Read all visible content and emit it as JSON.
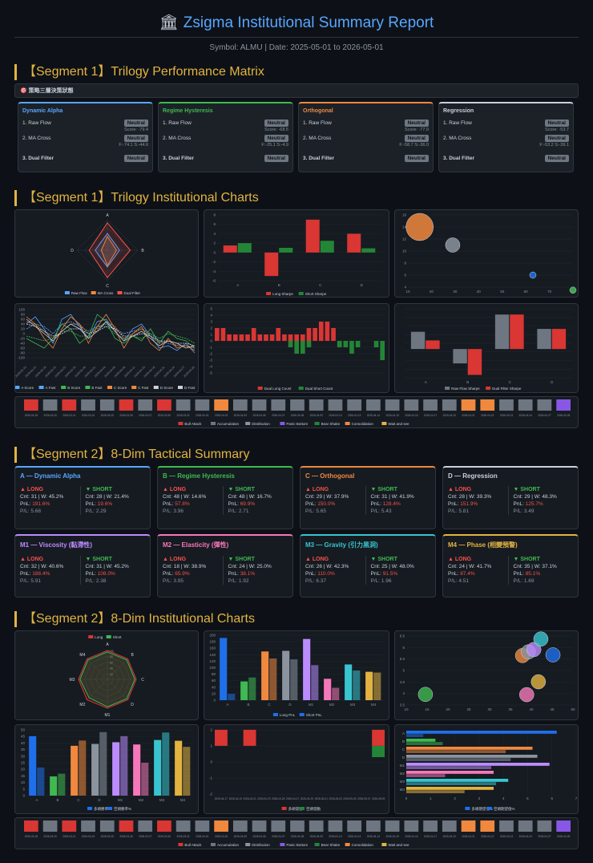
{
  "header": {
    "title": "Zsigma Institutional Summary Report",
    "subtitle": "Symbol: ALMU | Date: 2025-05-01 to 2026-05-01"
  },
  "sections": {
    "s1_matrix": "【Segment 1】Trilogy Performance Matrix",
    "s1_charts": "【Segment 1】Trilogy Institutional Charts",
    "s2_summary": "【Segment 2】8-Dim Tactical Summary",
    "s2_charts": "【Segment 2】8-Dim Institutional Charts"
  },
  "matrix_bar_label": "🎯 策略三層決策狀態",
  "matrix": [
    {
      "name": "Dynamic Alpha",
      "color": "#58a6ff",
      "r1": "1. Raw Flow",
      "b1": "Neutral",
      "s1": "Score: -79.4",
      "r2": "2. MA Cross",
      "b2": "Neutral",
      "s2": "F:-74.1 S:-44.6",
      "r3": "3. Dual Filter",
      "b3": "Neutral"
    },
    {
      "name": "Regime Hysteresis",
      "color": "#3fb950",
      "r1": "1. Raw Flow",
      "b1": "Neutral",
      "s1": "Score: -68.5",
      "r2": "2. MA Cross",
      "b2": "Neutral",
      "s2": "F:-25.1 S:-4.9",
      "r3": "3. Dual Filter",
      "b3": "Neutral"
    },
    {
      "name": "Orthogonal",
      "color": "#f0883e",
      "r1": "1. Raw Flow",
      "b1": "Neutral",
      "s1": "Score: -77.0",
      "r2": "2. MA Cross",
      "b2": "Neutral",
      "s2": "F:-58.7 S:-36.0",
      "r3": "3. Dual Filter",
      "b3": "Neutral"
    },
    {
      "name": "Regression",
      "color": "#c9d1d9",
      "r1": "1. Raw Flow",
      "b1": "Neutral",
      "s1": "Score: -53.7",
      "r2": "2. MA Cross",
      "b2": "Neutral",
      "s2": "F:-53.2 S:-39.1",
      "r3": "3. Dual Filter",
      "b3": "Neutral"
    }
  ],
  "tactical": [
    {
      "title": "A — Dynamic Alpha",
      "color": "#58a6ff",
      "long": {
        "cnt": "Cnt: 31 | W: 45.2%",
        "pnl": "191.6%",
        "pl": "P/L: 5.68"
      },
      "short": {
        "cnt": "Cnt: 28 | W: 21.4%",
        "pnl": "19.6%",
        "pl": "P/L: 2.29"
      }
    },
    {
      "title": "B — Regime Hysteresis",
      "color": "#3fb950",
      "long": {
        "cnt": "Cnt: 48 | W: 14.6%",
        "pnl": "57.8%",
        "pl": "P/L: 3.96"
      },
      "short": {
        "cnt": "Cnt: 48 | W: 16.7%",
        "pnl": "69.9%",
        "pl": "P/L: 2.71"
      }
    },
    {
      "title": "C — Orthogonal",
      "color": "#f0883e",
      "long": {
        "cnt": "Cnt: 29 | W: 37.9%",
        "pnl": "150.0%",
        "pl": "P/L: 5.65"
      },
      "short": {
        "cnt": "Cnt: 31 | W: 41.9%",
        "pnl": "128.4%",
        "pl": "P/L: 5.43"
      }
    },
    {
      "title": "D — Regression",
      "color": "#c9d1d9",
      "long": {
        "cnt": "Cnt: 28 | W: 39.3%",
        "pnl": "151.9%",
        "pl": "P/L: 5.81"
      },
      "short": {
        "cnt": "Cnt: 29 | W: 48.3%",
        "pnl": "125.7%",
        "pl": "P/L: 3.49"
      }
    },
    {
      "title": "M1 — Viscosity (黏滯性)",
      "color": "#bc8cff",
      "long": {
        "cnt": "Cnt: 32 | W: 40.6%",
        "pnl": "188.4%",
        "pl": "P/L: 5.91"
      },
      "short": {
        "cnt": "Cnt: 31 | W: 45.2%",
        "pnl": "108.0%",
        "pl": "P/L: 2.38"
      }
    },
    {
      "title": "M2 — Elasticity (彈性)",
      "color": "#f778ba",
      "long": {
        "cnt": "Cnt: 18 | W: 38.9%",
        "pnl": "65.9%",
        "pl": "P/L: 3.95"
      },
      "short": {
        "cnt": "Cnt: 24 | W: 25.0%",
        "pnl": "38.1%",
        "pl": "P/L: 1.92"
      }
    },
    {
      "title": "M3 — Gravity (引力黑洞)",
      "color": "#39c5cf",
      "long": {
        "cnt": "Cnt: 26 | W: 42.3%",
        "pnl": "110.0%",
        "pl": "P/L: 6.37"
      },
      "short": {
        "cnt": "Cnt: 25 | W: 48.0%",
        "pnl": "91.5%",
        "pl": "P/L: 1.96"
      }
    },
    {
      "title": "M4 — Phase (相變預警)",
      "color": "#e3b341",
      "long": {
        "cnt": "Cnt: 24 | W: 41.7%",
        "pnl": "87.4%",
        "pl": "P/L: 4.51"
      },
      "short": {
        "cnt": "Cnt: 35 | W: 37.1%",
        "pnl": "85.1%",
        "pl": "P/L: 1.69"
      }
    }
  ],
  "labels": {
    "long": "▲ LONG",
    "short": "▼ SHORT",
    "pnl_prefix": "PnL: "
  },
  "charts": {
    "radar1": {
      "axes": [
        "A",
        "B",
        "C",
        "D"
      ],
      "legend": [
        "Raw Flow",
        "MA Cross",
        "Dual Filter"
      ],
      "colors": [
        "#58a6ff",
        "#f0883e",
        "#f85149"
      ],
      "values": [
        [
          0.55,
          0.4,
          0.55,
          0.4
        ],
        [
          0.45,
          0.3,
          0.5,
          0.2
        ],
        [
          0.9,
          0.75,
          0.9,
          0.6
        ]
      ]
    },
    "bar1": {
      "categories": [
        "A",
        "B",
        "C",
        "D"
      ],
      "ylim": [
        -6,
        8
      ],
      "ticks": [
        "8",
        "6",
        "4",
        "2",
        "0",
        "-2",
        "-4",
        "-6"
      ],
      "legend": [
        "Long Sharpe",
        "Short Sharpe"
      ],
      "colors": [
        "#da3633",
        "#238636"
      ],
      "series": [
        [
          1.5,
          -5.0,
          7.0,
          4.0
        ],
        [
          2.0,
          1.0,
          2.5,
          0.9
        ]
      ]
    },
    "bubble1": {
      "xticks": [
        "10",
        "20",
        "30",
        "40",
        "50",
        "60",
        "70",
        "80"
      ],
      "yticks": [
        "16",
        "14",
        "12",
        "10",
        "8",
        "6",
        "4"
      ],
      "points": [
        {
          "x": 15,
          "y": 14,
          "r": 17,
          "c": "#f0883e"
        },
        {
          "x": 29,
          "y": 11,
          "r": 9,
          "c": "#8b949e"
        },
        {
          "x": 63,
          "y": 6,
          "r": 4,
          "c": "#1f6feb"
        },
        {
          "x": 80,
          "y": 3.5,
          "r": 4,
          "c": "#3fb950"
        }
      ]
    },
    "line1": {
      "legend": [
        "A Score",
        "A Fast",
        "B Score",
        "B Fast",
        "C Score",
        "C Fast",
        "D Score",
        "D Fast"
      ],
      "yticks": [
        "100",
        "80",
        "60",
        "40",
        "20",
        "0",
        "-20",
        "-40",
        "-60",
        "-80",
        "-100"
      ],
      "dates": [
        "2026-03-10",
        "2026-03-13",
        "2026-03-16",
        "2026-03-19",
        "2026-03-22",
        "2026-03-25",
        "2026-03-28",
        "2026-03-31",
        "2026-04-03",
        "2026-04-06",
        "2026-04-09",
        "2026-04-12",
        "2026-04-15",
        "2026-04-18",
        "2026-04-21",
        "2026-04-24",
        "2026-04-27",
        "2026-04-30"
      ]
    },
    "bar2": {
      "legend": [
        "Dual Long Count",
        "Dual Short Count"
      ],
      "yticks": [
        "5",
        "4",
        "3",
        "2",
        "1",
        "0",
        "-1",
        "-2",
        "-3",
        "-4",
        "-5"
      ],
      "pos": [
        2,
        2,
        1,
        1,
        1,
        1,
        2,
        1,
        1,
        1,
        2,
        1,
        1,
        1,
        1,
        2,
        2,
        3,
        3,
        2,
        0,
        0,
        0,
        0,
        0,
        0,
        0,
        0
      ],
      "neg": [
        0,
        0,
        0,
        0,
        0,
        0,
        0,
        0,
        0,
        0,
        0,
        0,
        -1,
        -2,
        -2,
        -1,
        0,
        0,
        0,
        0,
        -1,
        -1,
        -2,
        -1,
        0,
        0,
        -1,
        -3
      ]
    },
    "bar3": {
      "categories": [
        "A",
        "B",
        "C",
        "D"
      ],
      "legend": [
        "Raw Flow Sharpe",
        "Dual Filter Sharpe"
      ],
      "yticks": [
        "",
        "",
        "",
        "",
        "",
        ""
      ],
      "colors": [
        "#6e7681",
        "#da3633"
      ],
      "series": [
        [
          3,
          -2.5,
          6,
          3.5
        ],
        [
          1.5,
          -4.5,
          6,
          3.5
        ]
      ]
    },
    "regime1": {
      "colors": [
        "#da3633",
        "#6e7681",
        "#da3633",
        "#6e7681",
        "#6e7681",
        "#da3633",
        "#6e7681",
        "#da3633",
        "#6e7681",
        "#6e7681",
        "#f0883e",
        "#6e7681",
        "#6e7681",
        "#6e7681",
        "#6e7681",
        "#6e7681",
        "#6e7681",
        "#6e7681",
        "#6e7681",
        "#6e7681",
        "#6e7681",
        "#6e7681",
        "#6e7681",
        "#f0883e",
        "#f0883e",
        "#6e7681",
        "#6e7681",
        "#6e7681",
        "#8957e5"
      ],
      "legend": [
        "Bull Attack",
        "Accumulation",
        "Distribution",
        "Panic Bottom",
        "Bear Shake",
        "Consolidation",
        "Wait and see"
      ],
      "legendColors": [
        "#da3633",
        "#6e7681",
        "#8b949e",
        "#8957e5",
        "#238636",
        "#f0883e",
        "#e3b341"
      ]
    },
    "radar2": {
      "axes": [
        "A",
        "B",
        "C",
        "D",
        "M1",
        "M2",
        "M3",
        "M4"
      ],
      "legend": [
        "Long",
        "Short"
      ],
      "colors": [
        "#da3633",
        "#3fb950"
      ],
      "ticks": [
        "100",
        "80",
        "60",
        "40",
        "20"
      ]
    },
    "bar4": {
      "categories": [
        "A",
        "B",
        "C",
        "D",
        "M1",
        "M2",
        "M3",
        "M4"
      ],
      "legend": [
        "Long PnL",
        "Short PnL"
      ],
      "colors": [
        "#1f6feb",
        "#1f6feb"
      ],
      "yticks": [
        "200",
        "180",
        "160",
        "140",
        "120",
        "100",
        "80",
        "60",
        "40",
        "20",
        "0"
      ],
      "ylim": [
        0,
        200
      ]
    },
    "bubble2": {
      "xticks": [
        "10",
        "15",
        "20",
        "25",
        "30",
        "35",
        "40",
        "45",
        "50"
      ],
      "yticks": [
        "6.5",
        "6",
        "5.5",
        "5",
        "4.5",
        "4",
        "3.5"
      ]
    },
    "bar5": {
      "categories": [
        "A",
        "B",
        "C",
        "D",
        "M1",
        "M2",
        "M3",
        "M4"
      ],
      "legend": [
        "多頭勝率%",
        "空頭勝率%"
      ],
      "yticks": [
        "50",
        "45",
        "40",
        "35",
        "30",
        "25",
        "20",
        "15",
        "10",
        "5",
        "0"
      ],
      "ylim": [
        0,
        50
      ]
    },
    "bar6": {
      "legend": [
        "多頭發動",
        "空頭發動"
      ],
      "yticks": [
        "2",
        "1",
        "0",
        "-1",
        "-2"
      ]
    },
    "hbar1": {
      "categories": [
        "A",
        "B",
        "C",
        "D",
        "M1",
        "M2",
        "M3",
        "M4"
      ],
      "legend": [
        "多頭期望值%",
        "空頭期望值%"
      ],
      "xticks": [
        "0",
        "1",
        "2",
        "3",
        "4",
        "5",
        "6",
        "7"
      ]
    }
  }
}
